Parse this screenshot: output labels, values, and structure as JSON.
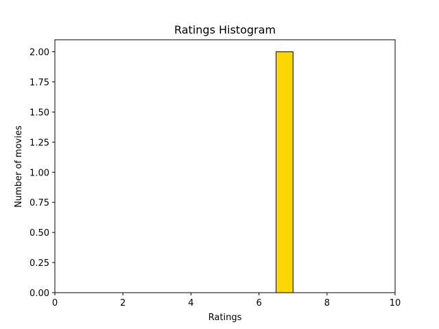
{
  "chart_data": {
    "type": "bar",
    "title": "Ratings Histogram",
    "xlabel": "Ratings",
    "ylabel": "Number of movies",
    "xlim": [
      0,
      10
    ],
    "ylim": [
      0,
      2.1
    ],
    "xticks": [
      0,
      2,
      4,
      6,
      8,
      10
    ],
    "xtick_labels": [
      "0",
      "2",
      "4",
      "6",
      "8",
      "10"
    ],
    "yticks": [
      0,
      0.25,
      0.5,
      0.75,
      1.0,
      1.25,
      1.5,
      1.75,
      2.0
    ],
    "ytick_labels": [
      "0.00",
      "0.25",
      "0.50",
      "0.75",
      "1.00",
      "1.25",
      "1.50",
      "1.75",
      "2.00"
    ],
    "bins": [
      {
        "start": 6.5,
        "end": 7.0,
        "count": 2
      }
    ],
    "bar_color": "#ffd700",
    "edge_color": "#000000",
    "grid": false,
    "legend": "none"
  }
}
